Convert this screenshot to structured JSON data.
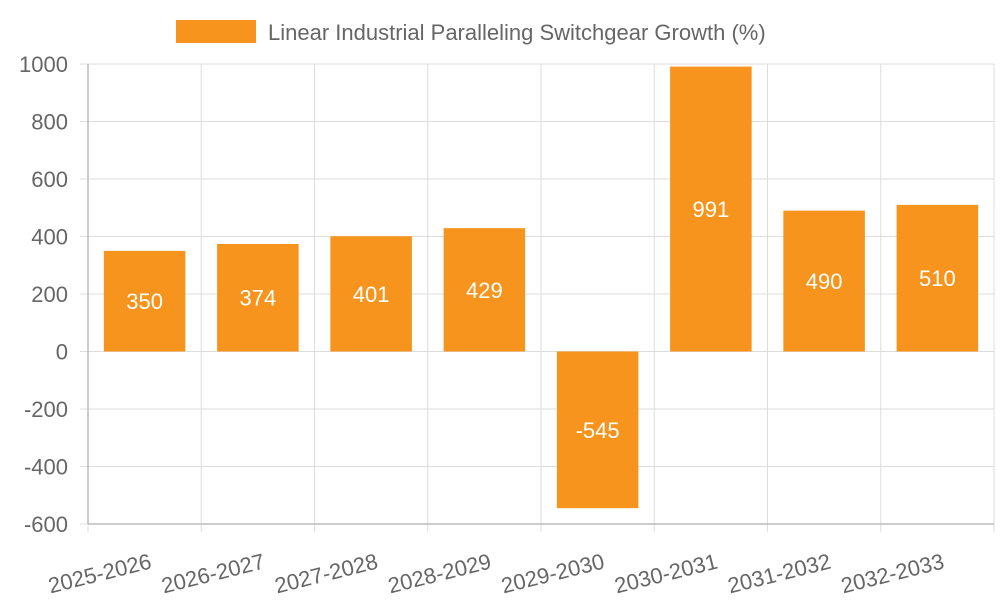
{
  "chart_data": {
    "type": "bar",
    "title": "",
    "xlabel": "",
    "ylabel": "",
    "categories": [
      "2025-2026",
      "2026-2027",
      "2027-2028",
      "2028-2029",
      "2029-2030",
      "2030-2031",
      "2031-2032",
      "2032-2033"
    ],
    "series": [
      {
        "name": "Linear Industrial Paralleling Switchgear Growth (%)",
        "values": [
          350,
          374,
          401,
          429,
          -545,
          991,
          490,
          510
        ],
        "color": "#f7941d"
      }
    ],
    "ylim": [
      -600,
      1000
    ],
    "yticks": [
      1000,
      800,
      600,
      400,
      200,
      0,
      -200,
      -400,
      -600
    ],
    "grid": true,
    "legend_position": "top-center"
  }
}
